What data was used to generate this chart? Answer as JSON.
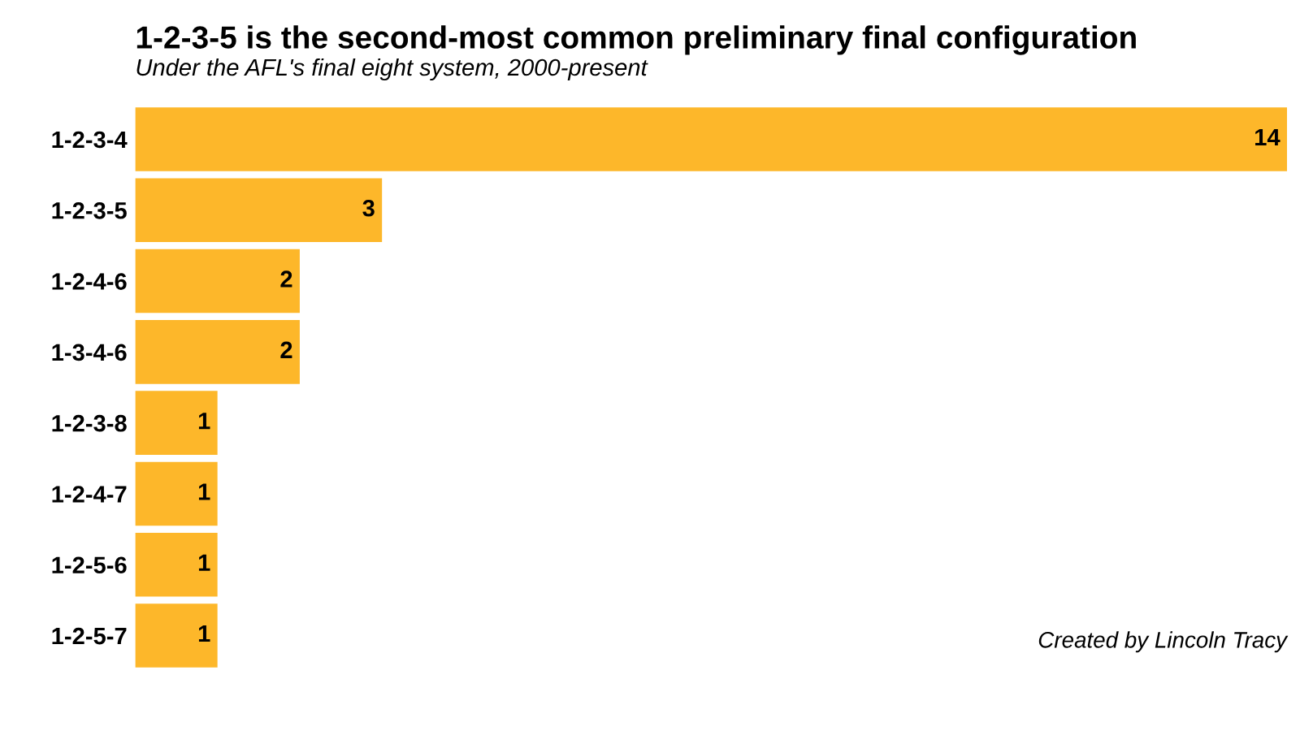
{
  "chart_data": {
    "type": "bar",
    "orientation": "horizontal",
    "title": "1-2-3-5 is the second-most common preliminary final configuration",
    "subtitle": "Under the AFL's final eight system, 2000-present",
    "categories": [
      "1-2-3-4",
      "1-2-3-5",
      "1-2-4-6",
      "1-3-4-6",
      "1-2-3-8",
      "1-2-4-7",
      "1-2-5-6",
      "1-2-5-7"
    ],
    "values": [
      14,
      3,
      2,
      2,
      1,
      1,
      1,
      1
    ],
    "color": "#fdb72a",
    "xlim": [
      0,
      14
    ],
    "tick_labels": "y",
    "data_labels": true,
    "grid": false,
    "legend": false,
    "annotations": [
      "Created by Lincoln Tracy"
    ]
  }
}
